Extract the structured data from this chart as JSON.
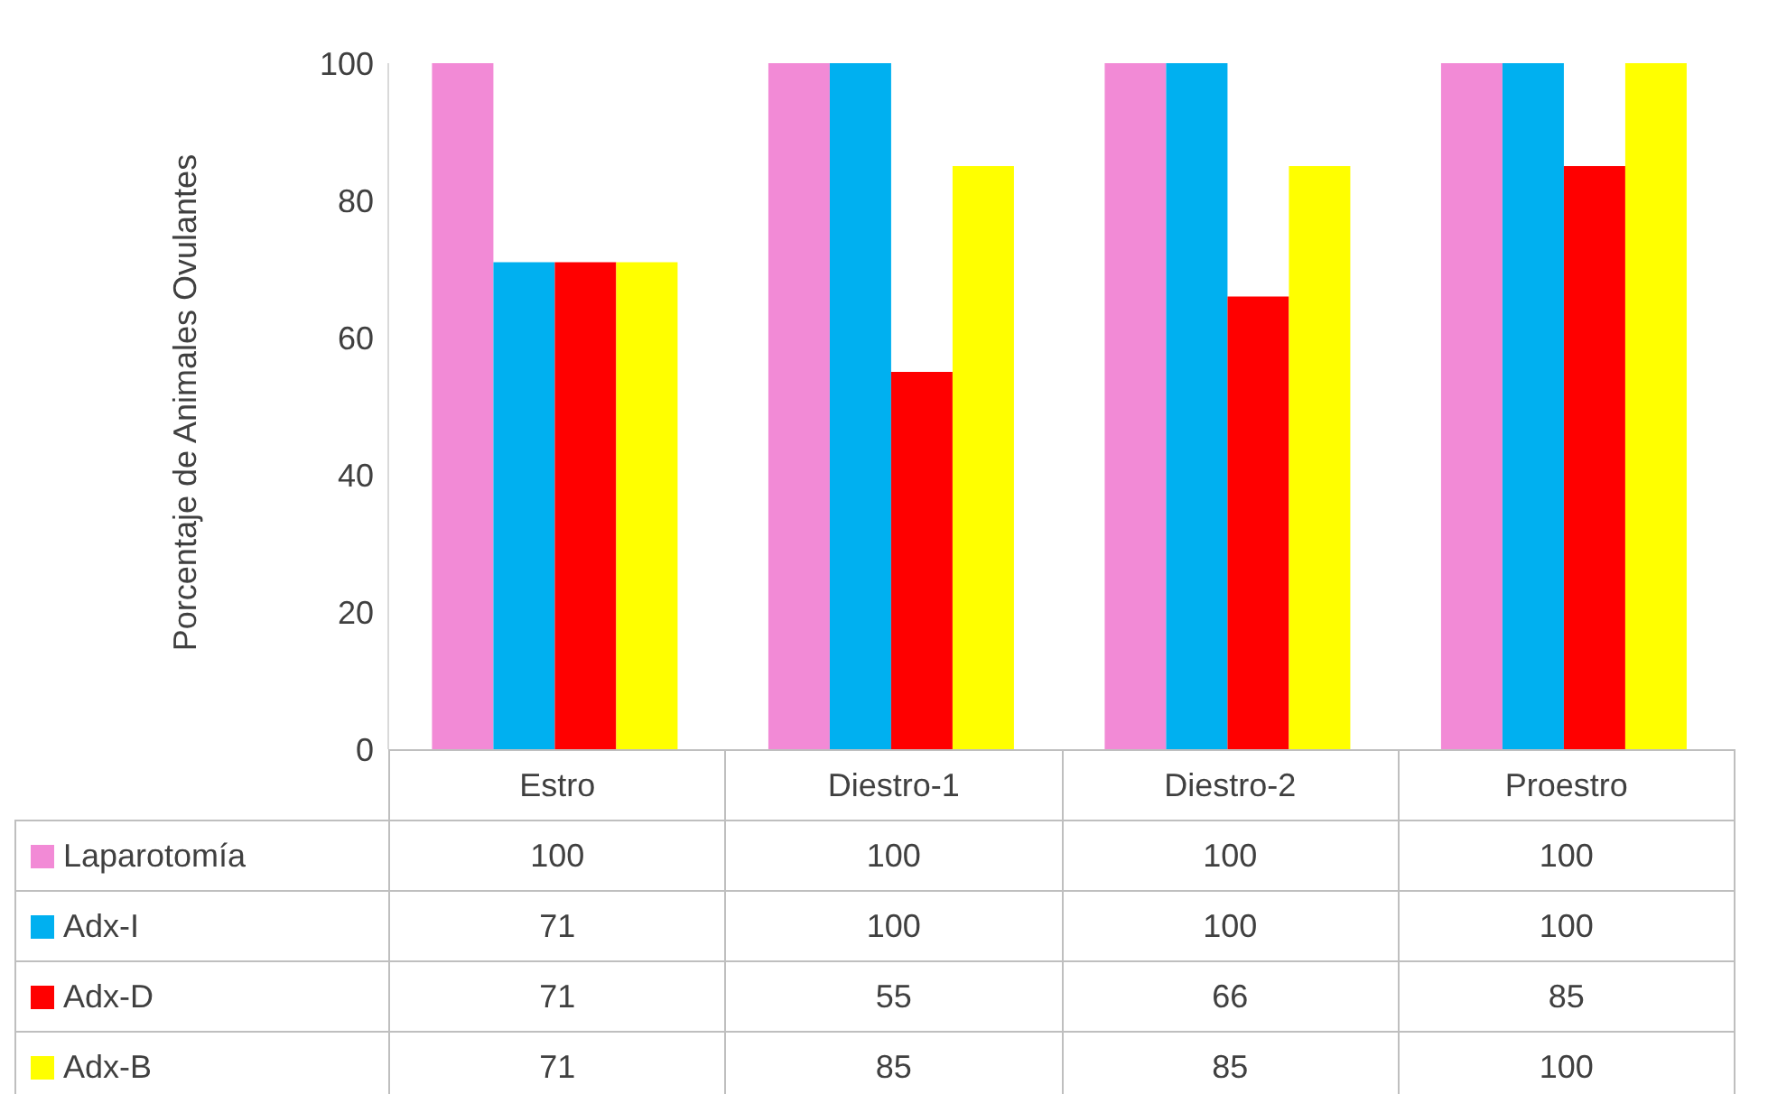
{
  "chart_data": {
    "type": "bar",
    "ylabel": "Porcentaje de Animales Ovulantes",
    "categories": [
      "Estro",
      "Diestro-1",
      "Diestro-2",
      "Proestro"
    ],
    "series": [
      {
        "name": "Laparotomía",
        "color": "#f28ad6",
        "values": [
          100,
          100,
          100,
          100
        ]
      },
      {
        "name": "Adx-I",
        "color": "#00b0f0",
        "values": [
          71,
          100,
          100,
          100
        ]
      },
      {
        "name": "Adx-D",
        "color": "#ff0000",
        "values": [
          71,
          55,
          66,
          85
        ]
      },
      {
        "name": "Adx-B",
        "color": "#ffff00",
        "values": [
          71,
          85,
          85,
          100
        ]
      }
    ],
    "ylim": [
      0,
      100
    ],
    "yticks": [
      0,
      20,
      40,
      60,
      80,
      100
    ],
    "grid": false,
    "legend": "bottom",
    "data_labels": true
  }
}
